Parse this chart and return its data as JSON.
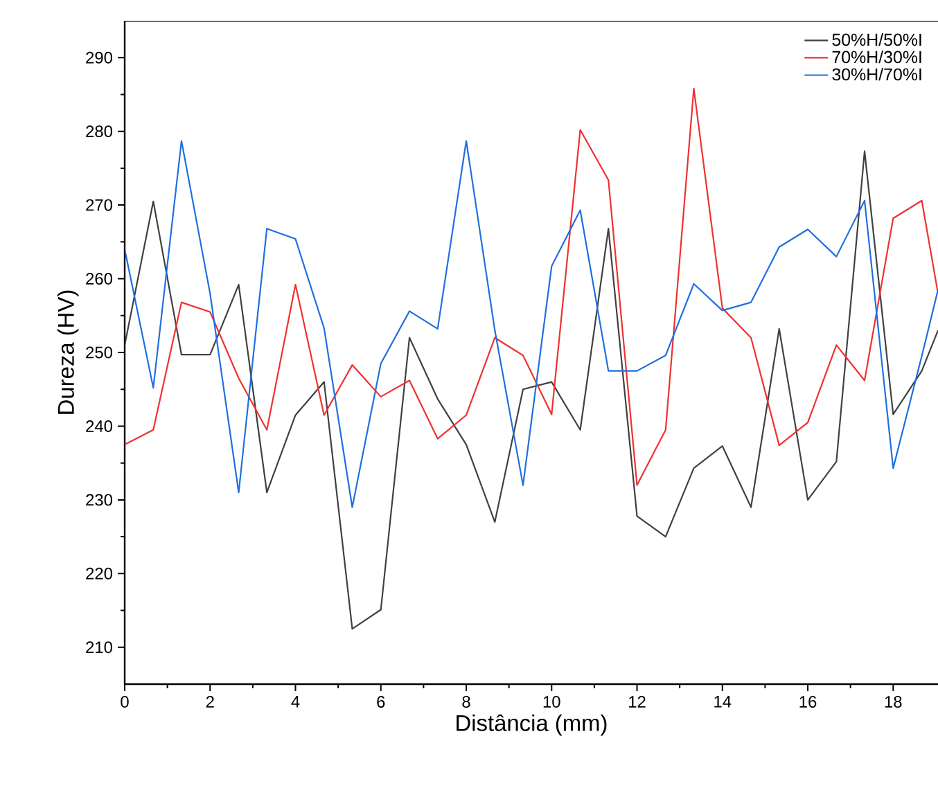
{
  "chart_data": {
    "type": "line",
    "xlabel": "Distância (mm)",
    "ylabel": "Dureza (HV)",
    "x": [
      0,
      0.67,
      1.33,
      2,
      2.67,
      3.33,
      4,
      4.67,
      5.33,
      6,
      6.67,
      7.33,
      8,
      8.67,
      9.33,
      10,
      10.67,
      11.33,
      12,
      12.67,
      13.33,
      14,
      14.67,
      15.33,
      16,
      16.67,
      17.33,
      18,
      18.67,
      19.05
    ],
    "series": [
      {
        "name": "50%H/50%I",
        "color": "#404040",
        "values": [
          251,
          270.5,
          249.7,
          249.7,
          259.2,
          231,
          241.5,
          246,
          212.5,
          215.1,
          252,
          243.7,
          237.5,
          227,
          245,
          246,
          239.5,
          266.8,
          227.8,
          225,
          234.3,
          237.3,
          229,
          253.2,
          230,
          235.2,
          277.3,
          241.6,
          247.5,
          253
        ]
      },
      {
        "name": "70%H/30%I",
        "color": "#f03030",
        "values": [
          237.5,
          239.5,
          256.8,
          255.5,
          246.5,
          239.5,
          259.2,
          241.5,
          248.3,
          244,
          246.2,
          238.3,
          241.5,
          252,
          249.6,
          241.6,
          280.2,
          273.4,
          232,
          239.5,
          285.8,
          256,
          252,
          237.4,
          240.5,
          251,
          246.2,
          268.2,
          270.6,
          258
        ]
      },
      {
        "name": "30%H/70%I",
        "color": "#1f6fe0",
        "values": [
          264,
          245.2,
          278.7,
          258,
          231,
          266.8,
          265.4,
          253.3,
          229,
          248.5,
          255.6,
          253.2,
          278.7,
          253,
          232,
          261.7,
          269.3,
          247.5,
          247.5,
          249.6,
          259.3,
          255.7,
          256.8,
          264.3,
          266.7,
          263,
          270.6,
          234.3,
          249.5,
          258.5
        ]
      }
    ],
    "xlim": [
      0,
      19.05
    ],
    "ylim": [
      205,
      295
    ],
    "xticks": [
      0,
      2,
      4,
      6,
      8,
      10,
      12,
      14,
      16,
      18
    ],
    "yticks": [
      210,
      220,
      230,
      240,
      250,
      260,
      270,
      280,
      290
    ],
    "legend": "top right",
    "grid": false,
    "marker": "none",
    "line_style": "solid"
  }
}
